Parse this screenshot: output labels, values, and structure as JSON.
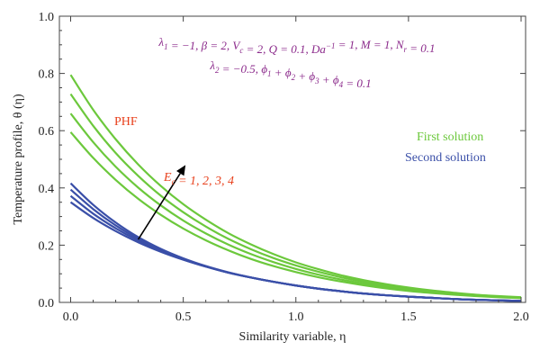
{
  "chart_data": {
    "type": "line",
    "xlabel": "Similarity variable, η",
    "ylabel": "Temperature profile, θ (η)",
    "xlim": [
      -0.05,
      2.02
    ],
    "ylim": [
      0,
      1.0
    ],
    "xticks": [
      "0.0",
      "0.5",
      "1.0",
      "1.5",
      "2.0"
    ],
    "yticks": [
      "0.0",
      "0.2",
      "0.4",
      "0.6",
      "0.8",
      "1.0"
    ],
    "grid": false,
    "parameters_line1": "λ1 = −1, β = 2, Vc = 2, Q = 0.1, Da−1 = 1, M = 1, Nr = 0.1",
    "parameters_line2": "λ2 = −0.5, ϕ1 + ϕ2 + ϕ3 + ϕ4 = 0.1",
    "annotation_left": "PHF",
    "annotation_arrow": "Ec = 1, 2, 3, 4",
    "legend_first": "First solution",
    "legend_second": "Second solution",
    "colors": {
      "first": "#6cc83c",
      "second": "#3a4fa8",
      "params": "#8b2a8b",
      "annotation": "#e8401c",
      "arrow": "#000000"
    },
    "x": [
      0.0,
      0.1,
      0.2,
      0.3,
      0.4,
      0.5,
      0.6,
      0.7,
      0.8,
      0.9,
      1.0,
      1.1,
      1.2,
      1.3,
      1.4,
      1.5,
      1.6,
      1.7,
      1.8,
      1.9,
      2.0
    ],
    "series": [
      {
        "group": "first",
        "values": [
          0.595,
          0.505,
          0.428,
          0.362,
          0.306,
          0.258,
          0.217,
          0.182,
          0.152,
          0.127,
          0.106,
          0.088,
          0.073,
          0.06,
          0.049,
          0.04,
          0.033,
          0.027,
          0.022,
          0.018,
          0.015
        ]
      },
      {
        "group": "first",
        "values": [
          0.66,
          0.56,
          0.474,
          0.401,
          0.339,
          0.286,
          0.241,
          0.202,
          0.169,
          0.141,
          0.117,
          0.097,
          0.08,
          0.066,
          0.054,
          0.044,
          0.036,
          0.029,
          0.024,
          0.019,
          0.016
        ]
      },
      {
        "group": "first",
        "values": [
          0.728,
          0.617,
          0.522,
          0.442,
          0.373,
          0.315,
          0.265,
          0.222,
          0.186,
          0.155,
          0.129,
          0.107,
          0.088,
          0.072,
          0.059,
          0.048,
          0.039,
          0.032,
          0.026,
          0.021,
          0.017
        ]
      },
      {
        "group": "first",
        "values": [
          0.795,
          0.673,
          0.57,
          0.482,
          0.407,
          0.343,
          0.289,
          0.242,
          0.203,
          0.169,
          0.14,
          0.116,
          0.095,
          0.078,
          0.064,
          0.052,
          0.042,
          0.034,
          0.027,
          0.022,
          0.018
        ]
      },
      {
        "group": "second",
        "values": [
          0.35,
          0.295,
          0.249,
          0.21,
          0.177,
          0.149,
          0.125,
          0.104,
          0.087,
          0.072,
          0.059,
          0.048,
          0.039,
          0.031,
          0.025,
          0.02,
          0.016,
          0.012,
          0.009,
          0.007,
          0.005
        ]
      },
      {
        "group": "second",
        "values": [
          0.372,
          0.31,
          0.259,
          0.216,
          0.18,
          0.15,
          0.125,
          0.104,
          0.087,
          0.072,
          0.059,
          0.048,
          0.039,
          0.031,
          0.025,
          0.02,
          0.016,
          0.012,
          0.009,
          0.007,
          0.005
        ]
      },
      {
        "group": "second",
        "values": [
          0.394,
          0.326,
          0.269,
          0.222,
          0.184,
          0.152,
          0.126,
          0.104,
          0.087,
          0.072,
          0.059,
          0.048,
          0.039,
          0.031,
          0.025,
          0.02,
          0.016,
          0.012,
          0.009,
          0.007,
          0.005
        ]
      },
      {
        "group": "second",
        "values": [
          0.416,
          0.341,
          0.279,
          0.228,
          0.187,
          0.154,
          0.127,
          0.105,
          0.087,
          0.072,
          0.059,
          0.048,
          0.039,
          0.031,
          0.025,
          0.02,
          0.016,
          0.012,
          0.009,
          0.007,
          0.005
        ]
      }
    ],
    "arrow_from": [
      0.3,
      0.22
    ],
    "arrow_to": [
      0.51,
      0.48
    ]
  }
}
